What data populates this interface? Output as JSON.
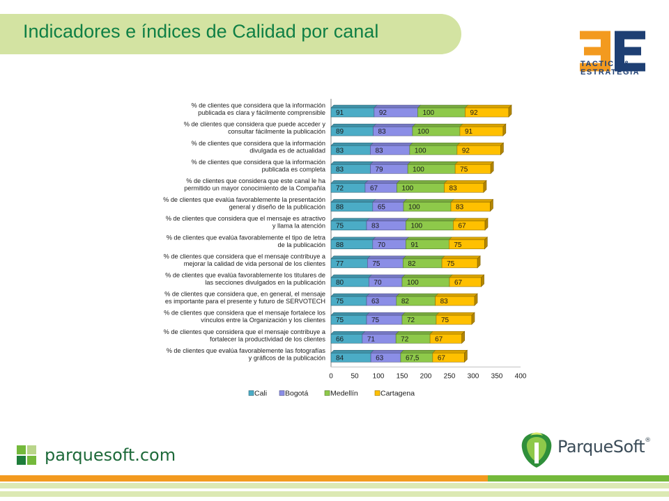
{
  "slide": {
    "title": "Indicadores e índices de Calidad por canal",
    "logo_3e_letters": "3E",
    "logo_3e_line1": "TACTICA &",
    "logo_3e_line2": "ESTRATEGIA",
    "website": "parquesoft.com",
    "brand_name": "ParqueSoft",
    "brand_mark": "®"
  },
  "colors": {
    "title_band": "#d3e3a2",
    "title_text": "#0f7f45",
    "logo_orange": "#f39a1f",
    "logo_blue": "#1e3f73",
    "footer_orange": "#f39a1f",
    "footer_green": "#74b93b",
    "footer_light": "#dce9b4"
  },
  "chart_data": {
    "type": "bar",
    "orientation": "horizontal",
    "stacked": true,
    "categories": [
      "% de clientes que considera que la información publicada es clara y fácilmente comprensible",
      "% de clientes que considera que puede acceder y consultar fácilmente la publicación",
      "% de clientes que considera que la información divulgada es de actualidad",
      "% de clientes que considera que la información publicada es completa",
      "% de clientes que considera que este canal le ha permitido un mayor conocimiento de la Compañía",
      "% de clientes que evalúa favorablemente la presentación general y diseño de la publicación",
      "% de clientes que considera que el mensaje es atractivo y llama la atención",
      "% de clientes que evalúa favorablemente el tipo de letra de la publicación",
      "% de clientes que considera que el mensaje contribuye a mejorar la calidad de vida personal de los clientes",
      "% de clientes que evalúa favorablemente los titulares de las secciones divulgados en la publicación",
      "% de clientes que considera que, en general, el mensaje es importante para el presente y futuro de SERVOTECH",
      "% de clientes que considera que el mensaje fortalece los vínculos entre la Organización y los clientes",
      "% de clientes que considera que el mensaje contribuye a fortalecer la productividad de los clientes",
      "% de clientes que evalúa favorablemente las fotografías y gráficos de la publicación"
    ],
    "category_lines": [
      [
        "% de clientes que considera que la información",
        "publicada es clara y fácilmente comprensible"
      ],
      [
        "% de clientes que considera que puede acceder y",
        "consultar fácilmente la publicación"
      ],
      [
        "% de clientes que considera que la información",
        "divulgada es de actualidad"
      ],
      [
        "% de clientes que considera que la información",
        "publicada es completa"
      ],
      [
        "% de clientes que considera que este canal le ha",
        "permitido un mayor conocimiento de la Compañía"
      ],
      [
        "% de clientes que evalúa favorablemente la presentación",
        "general y diseño de la publicación"
      ],
      [
        "% de clientes que considera que el mensaje es atractivo",
        "y llama la atención"
      ],
      [
        "% de clientes que evalúa favorablemente el tipo de letra",
        "de la publicación"
      ],
      [
        "% de clientes que considera que el mensaje contribuye a",
        "mejorar la calidad de vida personal de los clientes"
      ],
      [
        "% de clientes que evalúa favorablemente los titulares de",
        "las secciones  divulgados en la publicación"
      ],
      [
        "% de clientes que considera que, en general, el mensaje",
        "es importante para el presente y futuro de SERVOTECH"
      ],
      [
        "% de clientes que considera que el mensaje fortalece los",
        "vínculos entre la Organización y los clientes"
      ],
      [
        "% de clientes que considera que el mensaje contribuye a",
        "fortalecer la productividad de los clientes"
      ],
      [
        "% de clientes que evalúa favorablemente las fotografías",
        "y gráficos de la publicación"
      ]
    ],
    "series": [
      {
        "name": "Cali",
        "color": "#4bacc6",
        "values": [
          91,
          89,
          83,
          83,
          72,
          88,
          75,
          88,
          77,
          80,
          75,
          75,
          66,
          84
        ],
        "labels": [
          "91",
          "89",
          "83",
          "83",
          "72",
          "88",
          "75",
          "88",
          "77",
          "80",
          "75",
          "75",
          "66",
          "84"
        ]
      },
      {
        "name": "Bogotá",
        "color": "#8b8ee6",
        "values": [
          92,
          83,
          83,
          79,
          67,
          65,
          83,
          70,
          75,
          70,
          63,
          75,
          71,
          63
        ],
        "labels": [
          "92",
          "83",
          "83",
          "79",
          "67",
          "65",
          "83",
          "70",
          "75",
          "70",
          "63",
          "75",
          "71",
          "63"
        ]
      },
      {
        "name": "Medellín",
        "color": "#8ec94a",
        "values": [
          100,
          100,
          100,
          100,
          100,
          100,
          100,
          91,
          82,
          100,
          82,
          72,
          72,
          67.5
        ],
        "labels": [
          "100",
          "100",
          "100",
          "100",
          "100",
          "100",
          "100",
          "91",
          "82",
          "100",
          "82",
          "72",
          "72",
          "67,5"
        ]
      },
      {
        "name": "Cartagena",
        "color": "#ffc000",
        "values": [
          92,
          91,
          92,
          75,
          83,
          83,
          67,
          75,
          75,
          67,
          83,
          75,
          67,
          67
        ],
        "labels": [
          "92",
          "91",
          "92",
          "75",
          "83",
          "83",
          "67",
          "75",
          "75",
          "67",
          "83",
          "75",
          "67",
          "67"
        ]
      }
    ],
    "xlim": [
      0,
      400
    ],
    "xticks": [
      0,
      50,
      100,
      150,
      200,
      250,
      300,
      350,
      400
    ],
    "xtick_labels": [
      "0",
      "50",
      "100",
      "150",
      "200",
      "250",
      "300",
      "350",
      "400"
    ],
    "grid": false,
    "legend_position": "bottom",
    "title": "",
    "xlabel": "",
    "ylabel": ""
  }
}
